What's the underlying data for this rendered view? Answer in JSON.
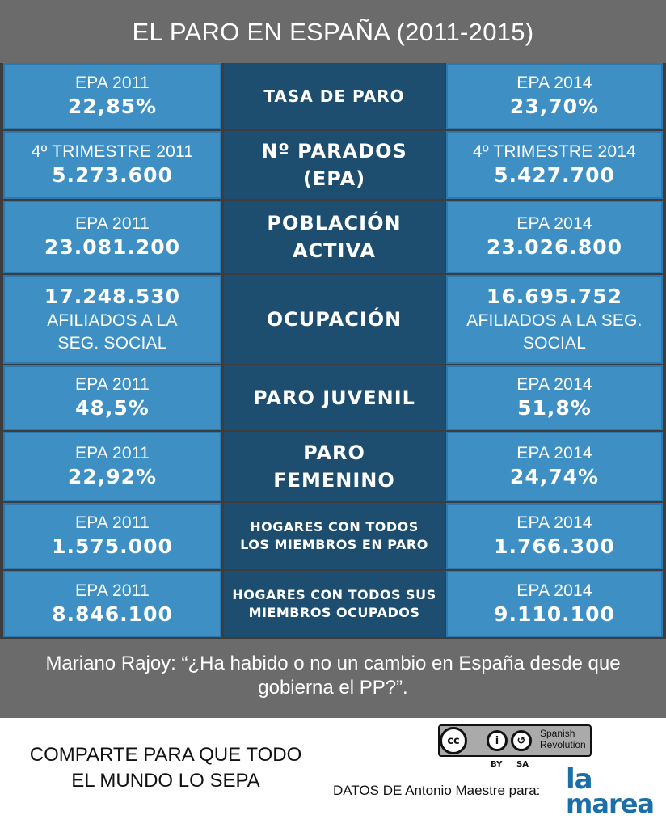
{
  "header": {
    "title": "EL PARO EN ESPAÑA (2011-2015)"
  },
  "rows": [
    {
      "category": "TASA DE PARO",
      "left": {
        "label": "EPA 2011",
        "value": "22,85%"
      },
      "right": {
        "label": "EPA 2014",
        "value": "23,70%"
      }
    },
    {
      "category": "Nº PARADOS\n(EPA)",
      "left": {
        "label": "4º TRIMESTRE 2011",
        "value": "5.273.600"
      },
      "right": {
        "label": "4º TRIMESTRE 2014",
        "value": "5.427.700"
      }
    },
    {
      "category": "POBLACIÓN\nACTIVA",
      "left": {
        "label": "EPA 2011",
        "value": "23.081.200"
      },
      "right": {
        "label": "EPA 2014",
        "value": "23.026.800"
      }
    },
    {
      "category": "OCUPACIÓN",
      "left": {
        "value": "17.248.530",
        "sub1": "AFILIADOS A LA",
        "sub2": "SEG. SOCIAL"
      },
      "right": {
        "value": "16.695.752",
        "sub1": "AFILIADOS A LA SEG.",
        "sub2": "SOCIAL"
      }
    },
    {
      "category": "PARO JUVENIL",
      "left": {
        "label": "EPA 2011",
        "value": "48,5%"
      },
      "right": {
        "label": "EPA 2014",
        "value": "51,8%"
      }
    },
    {
      "category": "PARO\nFEMENINO",
      "left": {
        "label": "EPA 2011",
        "value": "22,92%"
      },
      "right": {
        "label": "EPA 2014",
        "value": "24,74%"
      }
    },
    {
      "category": "HOGARES CON TODOS\nLOS MIEMBROS EN PARO",
      "left": {
        "label": "EPA 2011",
        "value": "1.575.000"
      },
      "right": {
        "label": "EPA 2014",
        "value": "1.766.300"
      }
    },
    {
      "category": "HOGARES CON TODOS SUS\nMIEMBROS OCUPADOS",
      "left": {
        "label": "EPA 2011",
        "value": "8.846.100"
      },
      "right": {
        "label": "EPA 2014",
        "value": "9.110.100"
      }
    }
  ],
  "quote": "Mariano Rajoy: “¿Ha habido o no un cambio en España desde que gobierna el PP?”.",
  "footer": {
    "share_line1": "COMPARTE PARA QUE TODO",
    "share_line2": "EL MUNDO LO SEPA",
    "license": {
      "cc": "cc",
      "by": "BY",
      "sa": "SA",
      "author_line1": "Spanish",
      "author_line2": "Revolution"
    },
    "source": "DATOS DE Antonio Maestre para:",
    "logo_line1": "la",
    "logo_line2": "marea"
  },
  "colors": {
    "background": "#6b6b6b",
    "side_cell": "#3d8fc4",
    "center_cell": "#1d4e70",
    "logo": "#1b6fa8"
  }
}
